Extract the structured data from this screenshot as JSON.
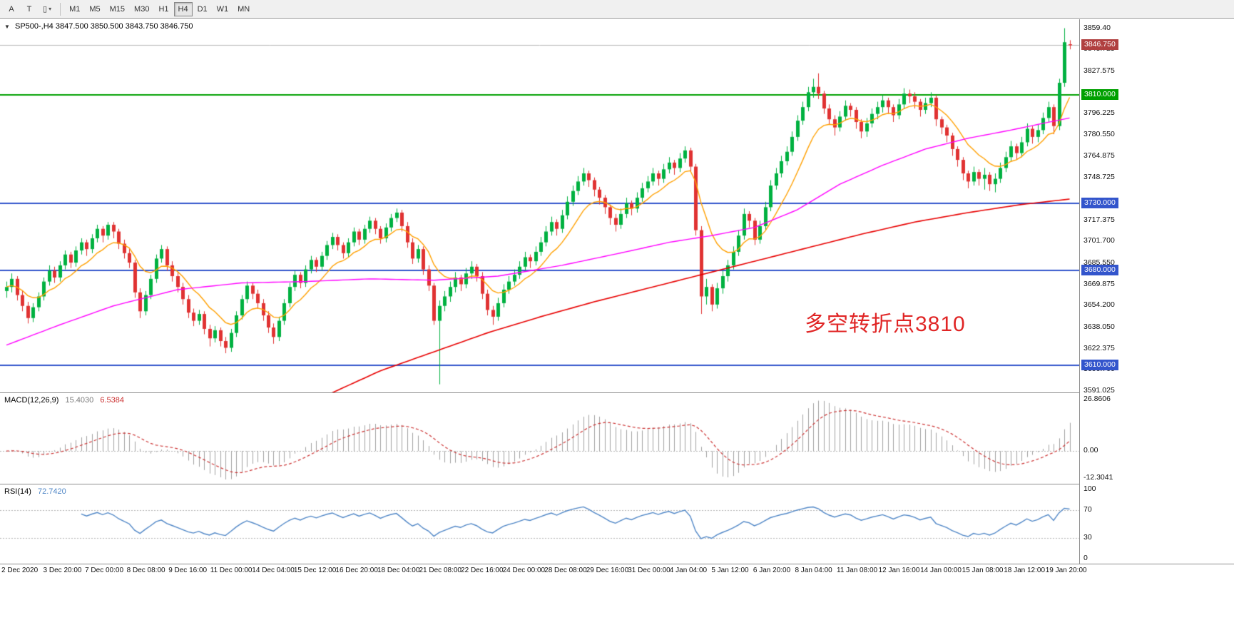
{
  "toolbar": {
    "left_buttons": [
      {
        "id": "symbols",
        "glyph": "A"
      },
      {
        "id": "text-tool",
        "glyph": "T"
      },
      {
        "id": "chart-type",
        "glyph": "▯",
        "caret": "▾"
      }
    ],
    "timeframes": [
      {
        "label": "M1",
        "active": false
      },
      {
        "label": "M5",
        "active": false
      },
      {
        "label": "M15",
        "active": false
      },
      {
        "label": "M30",
        "active": false
      },
      {
        "label": "H1",
        "active": false
      },
      {
        "label": "H4",
        "active": true
      },
      {
        "label": "D1",
        "active": false
      },
      {
        "label": "W1",
        "active": false
      },
      {
        "label": "MN",
        "active": false
      }
    ]
  },
  "chart": {
    "collapse_glyph": "▼",
    "title": "SP500-,H4  3847.500 3850.500 3843.750 3846.750",
    "annotation": {
      "text": "多空转折点3810",
      "color": "#e02525"
    },
    "current_price": {
      "label": "3846.750",
      "price": 3846.75,
      "box_color": "#b04040"
    },
    "hlines": [
      {
        "price": 3810,
        "label": "3810.000",
        "color": "#00a000"
      },
      {
        "price": 3730,
        "label": "3730.000",
        "color": "#3355cc"
      },
      {
        "price": 3680,
        "label": "3680.000",
        "color": "#3355cc"
      },
      {
        "price": 3610,
        "label": "3610.000",
        "color": "#3355cc"
      }
    ],
    "price_axis": {
      "min": 3590,
      "max": 3866,
      "grid_labels": [
        "3859.40",
        "3843.725",
        "3827.575",
        "3796.225",
        "3780.550",
        "3764.875",
        "3748.725",
        "3717.375",
        "3701.700",
        "3685.550",
        "3669.875",
        "3654.200",
        "3638.050",
        "3622.375",
        "3606.700",
        "3591.025"
      ]
    },
    "colors": {
      "up": "#00b140",
      "down": "#e03232",
      "ma_fast": "#ffa000",
      "ma_mid": "#ff00ff",
      "ma_slow": "#e80000",
      "bid_line": "#b8b8b8"
    }
  },
  "macd": {
    "label": "MACD(12,26,9)",
    "value1": "15.4030",
    "value2": "6.5384",
    "params": {
      "fast": 12,
      "slow": 26,
      "signal": 9
    },
    "axis": {
      "max": "26.8606",
      "zero": "0.00",
      "min": "-12.3041"
    },
    "colors": {
      "histogram": "#a0a0a0",
      "signal": "#cc3333",
      "zero_line": "#b4b4b4"
    }
  },
  "rsi": {
    "label": "RSI(14)",
    "value": "72.7420",
    "period": 14,
    "levels": [
      100,
      70,
      30,
      0
    ],
    "dotted_levels": [
      70,
      30
    ],
    "color": "#4f86c6"
  },
  "chart_data": {
    "type": "candlestick",
    "symbol": "SP500-",
    "timeframe": "H4",
    "ma_fast_period": 10,
    "ma_mid_anchors": [
      [
        0,
        3625
      ],
      [
        10,
        3640
      ],
      [
        20,
        3654
      ],
      [
        32,
        3666
      ],
      [
        44,
        3671
      ],
      [
        56,
        3672
      ],
      [
        68,
        3674
      ],
      [
        80,
        3673
      ],
      [
        92,
        3676
      ],
      [
        104,
        3684
      ],
      [
        116,
        3694
      ],
      [
        124,
        3701
      ],
      [
        132,
        3706
      ],
      [
        140,
        3712
      ],
      [
        148,
        3725
      ],
      [
        156,
        3744
      ],
      [
        164,
        3758
      ],
      [
        172,
        3770
      ],
      [
        180,
        3778
      ],
      [
        188,
        3784
      ],
      [
        194,
        3789
      ],
      [
        199,
        3793
      ]
    ],
    "ma_slow_anchors": [
      [
        50,
        3566
      ],
      [
        60,
        3588
      ],
      [
        70,
        3606
      ],
      [
        80,
        3620
      ],
      [
        90,
        3634
      ],
      [
        100,
        3646
      ],
      [
        110,
        3657
      ],
      [
        120,
        3667
      ],
      [
        130,
        3677
      ],
      [
        140,
        3687
      ],
      [
        150,
        3697
      ],
      [
        160,
        3707
      ],
      [
        170,
        3716
      ],
      [
        180,
        3723
      ],
      [
        190,
        3729
      ],
      [
        199,
        3733
      ]
    ],
    "x_labels": [
      "2 Dec 2020",
      "3 Dec 20:00",
      "7 Dec 00:00",
      "8 Dec 08:00",
      "9 Dec 16:00",
      "11 Dec 00:00",
      "14 Dec 04:00",
      "15 Dec 12:00",
      "16 Dec 20:00",
      "18 Dec 04:00",
      "21 Dec 08:00",
      "22 Dec 16:00",
      "24 Dec 00:00",
      "28 Dec 08:00",
      "29 Dec 16:00",
      "31 Dec 00:00",
      "4 Jan 04:00",
      "5 Jan 12:00",
      "6 Jan 20:00",
      "8 Jan 04:00",
      "11 Jan 08:00",
      "12 Jan 16:00",
      "14 Jan 00:00",
      "15 Jan 08:00",
      "18 Jan 12:00",
      "19 Jan 20:00"
    ],
    "ohlc": [
      [
        3665,
        3672,
        3660,
        3668
      ],
      [
        3668,
        3678,
        3664,
        3674
      ],
      [
        3674,
        3676,
        3658,
        3662
      ],
      [
        3662,
        3665,
        3650,
        3654
      ],
      [
        3654,
        3657,
        3641,
        3645
      ],
      [
        3645,
        3656,
        3642,
        3653
      ],
      [
        3653,
        3664,
        3650,
        3661
      ],
      [
        3661,
        3675,
        3658,
        3672
      ],
      [
        3672,
        3684,
        3669,
        3680
      ],
      [
        3680,
        3683,
        3671,
        3675
      ],
      [
        3675,
        3687,
        3672,
        3684
      ],
      [
        3684,
        3695,
        3681,
        3692
      ],
      [
        3692,
        3694,
        3682,
        3686
      ],
      [
        3686,
        3698,
        3683,
        3695
      ],
      [
        3695,
        3704,
        3692,
        3701
      ],
      [
        3701,
        3703,
        3691,
        3696
      ],
      [
        3696,
        3707,
        3693,
        3704
      ],
      [
        3704,
        3714,
        3701,
        3711
      ],
      [
        3711,
        3713,
        3701,
        3706
      ],
      [
        3706,
        3716,
        3703,
        3714
      ],
      [
        3714,
        3716,
        3704,
        3709
      ],
      [
        3709,
        3711,
        3696,
        3700
      ],
      [
        3700,
        3703,
        3689,
        3693
      ],
      [
        3693,
        3696,
        3682,
        3686
      ],
      [
        3686,
        3688,
        3660,
        3664
      ],
      [
        3664,
        3667,
        3645,
        3650
      ],
      [
        3650,
        3665,
        3647,
        3662
      ],
      [
        3662,
        3677,
        3659,
        3674
      ],
      [
        3674,
        3692,
        3671,
        3689
      ],
      [
        3689,
        3699,
        3686,
        3696
      ],
      [
        3696,
        3698,
        3680,
        3684
      ],
      [
        3684,
        3687,
        3672,
        3676
      ],
      [
        3676,
        3679,
        3664,
        3668
      ],
      [
        3668,
        3671,
        3655,
        3659
      ],
      [
        3659,
        3662,
        3645,
        3649
      ],
      [
        3649,
        3652,
        3639,
        3643
      ],
      [
        3643,
        3651,
        3640,
        3648
      ],
      [
        3648,
        3650,
        3633,
        3637
      ],
      [
        3637,
        3640,
        3624,
        3630
      ],
      [
        3630,
        3639,
        3627,
        3636
      ],
      [
        3636,
        3638,
        3624,
        3628
      ],
      [
        3628,
        3631,
        3619,
        3623
      ],
      [
        3623,
        3637,
        3620,
        3634
      ],
      [
        3634,
        3650,
        3631,
        3647
      ],
      [
        3647,
        3662,
        3644,
        3659
      ],
      [
        3659,
        3672,
        3656,
        3669
      ],
      [
        3669,
        3671,
        3659,
        3663
      ],
      [
        3663,
        3666,
        3652,
        3656
      ],
      [
        3656,
        3659,
        3643,
        3647
      ],
      [
        3647,
        3650,
        3634,
        3638
      ],
      [
        3638,
        3641,
        3626,
        3631
      ],
      [
        3631,
        3646,
        3628,
        3643
      ],
      [
        3643,
        3659,
        3640,
        3656
      ],
      [
        3656,
        3671,
        3653,
        3668
      ],
      [
        3668,
        3680,
        3665,
        3677
      ],
      [
        3677,
        3679,
        3667,
        3671
      ],
      [
        3671,
        3684,
        3668,
        3681
      ],
      [
        3681,
        3691,
        3678,
        3688
      ],
      [
        3688,
        3690,
        3679,
        3683
      ],
      [
        3683,
        3694,
        3680,
        3691
      ],
      [
        3691,
        3702,
        3688,
        3699
      ],
      [
        3699,
        3708,
        3696,
        3705
      ],
      [
        3705,
        3707,
        3695,
        3699
      ],
      [
        3699,
        3701,
        3689,
        3693
      ],
      [
        3693,
        3704,
        3690,
        3701
      ],
      [
        3701,
        3712,
        3698,
        3709
      ],
      [
        3709,
        3711,
        3699,
        3703
      ],
      [
        3703,
        3714,
        3700,
        3711
      ],
      [
        3711,
        3720,
        3708,
        3717
      ],
      [
        3717,
        3719,
        3707,
        3711
      ],
      [
        3711,
        3713,
        3700,
        3704
      ],
      [
        3704,
        3715,
        3701,
        3712
      ],
      [
        3712,
        3722,
        3709,
        3719
      ],
      [
        3719,
        3726,
        3716,
        3723
      ],
      [
        3723,
        3725,
        3709,
        3713
      ],
      [
        3713,
        3716,
        3697,
        3701
      ],
      [
        3701,
        3704,
        3685,
        3689
      ],
      [
        3689,
        3699,
        3686,
        3696
      ],
      [
        3696,
        3698,
        3677,
        3681
      ],
      [
        3681,
        3684,
        3665,
        3669
      ],
      [
        3669,
        3671,
        3640,
        3643
      ],
      [
        3643,
        3658,
        3596,
        3654
      ],
      [
        3654,
        3665,
        3650,
        3661
      ],
      [
        3661,
        3672,
        3657,
        3668
      ],
      [
        3668,
        3679,
        3664,
        3675
      ],
      [
        3675,
        3677,
        3665,
        3670
      ],
      [
        3670,
        3682,
        3667,
        3678
      ],
      [
        3678,
        3687,
        3674,
        3683
      ],
      [
        3683,
        3685,
        3672,
        3676
      ],
      [
        3676,
        3679,
        3659,
        3663
      ],
      [
        3663,
        3666,
        3647,
        3651
      ],
      [
        3651,
        3654,
        3640,
        3646
      ],
      [
        3646,
        3660,
        3643,
        3656
      ],
      [
        3656,
        3670,
        3653,
        3666
      ],
      [
        3666,
        3676,
        3663,
        3672
      ],
      [
        3672,
        3681,
        3669,
        3677
      ],
      [
        3677,
        3687,
        3674,
        3683
      ],
      [
        3683,
        3694,
        3680,
        3690
      ],
      [
        3690,
        3692,
        3682,
        3687
      ],
      [
        3687,
        3698,
        3684,
        3694
      ],
      [
        3694,
        3705,
        3691,
        3701
      ],
      [
        3701,
        3713,
        3698,
        3709
      ],
      [
        3709,
        3720,
        3706,
        3716
      ],
      [
        3716,
        3718,
        3706,
        3711
      ],
      [
        3711,
        3725,
        3708,
        3721
      ],
      [
        3721,
        3735,
        3718,
        3731
      ],
      [
        3731,
        3743,
        3728,
        3739
      ],
      [
        3739,
        3750,
        3736,
        3746
      ],
      [
        3746,
        3756,
        3743,
        3752
      ],
      [
        3752,
        3754,
        3742,
        3747
      ],
      [
        3747,
        3749,
        3735,
        3740
      ],
      [
        3740,
        3742,
        3729,
        3734
      ],
      [
        3734,
        3736,
        3722,
        3727
      ],
      [
        3727,
        3729,
        3714,
        3719
      ],
      [
        3719,
        3722,
        3709,
        3714
      ],
      [
        3714,
        3726,
        3711,
        3722
      ],
      [
        3722,
        3734,
        3719,
        3730
      ],
      [
        3730,
        3732,
        3721,
        3726
      ],
      [
        3726,
        3738,
        3723,
        3734
      ],
      [
        3734,
        3745,
        3731,
        3741
      ],
      [
        3741,
        3750,
        3738,
        3746
      ],
      [
        3746,
        3756,
        3743,
        3752
      ],
      [
        3752,
        3754,
        3743,
        3748
      ],
      [
        3748,
        3759,
        3745,
        3755
      ],
      [
        3755,
        3764,
        3752,
        3760
      ],
      [
        3760,
        3762,
        3751,
        3756
      ],
      [
        3756,
        3767,
        3753,
        3763
      ],
      [
        3763,
        3772,
        3760,
        3769
      ],
      [
        3769,
        3771,
        3753,
        3757
      ],
      [
        3757,
        3759,
        3706,
        3710
      ],
      [
        3710,
        3713,
        3648,
        3661
      ],
      [
        3661,
        3674,
        3655,
        3668
      ],
      [
        3668,
        3670,
        3650,
        3655
      ],
      [
        3655,
        3671,
        3652,
        3667
      ],
      [
        3667,
        3680,
        3663,
        3676
      ],
      [
        3676,
        3688,
        3672,
        3684
      ],
      [
        3684,
        3698,
        3681,
        3694
      ],
      [
        3694,
        3710,
        3691,
        3706
      ],
      [
        3706,
        3726,
        3703,
        3722
      ],
      [
        3722,
        3724,
        3712,
        3717
      ],
      [
        3717,
        3719,
        3699,
        3703
      ],
      [
        3703,
        3717,
        3700,
        3713
      ],
      [
        3713,
        3731,
        3710,
        3727
      ],
      [
        3727,
        3747,
        3724,
        3743
      ],
      [
        3743,
        3756,
        3740,
        3752
      ],
      [
        3752,
        3765,
        3749,
        3761
      ],
      [
        3761,
        3772,
        3758,
        3768
      ],
      [
        3768,
        3783,
        3765,
        3779
      ],
      [
        3779,
        3795,
        3776,
        3791
      ],
      [
        3791,
        3805,
        3788,
        3801
      ],
      [
        3801,
        3816,
        3798,
        3812
      ],
      [
        3812,
        3822,
        3808,
        3816
      ],
      [
        3816,
        3826,
        3807,
        3811
      ],
      [
        3811,
        3813,
        3796,
        3800
      ],
      [
        3800,
        3803,
        3788,
        3792
      ],
      [
        3792,
        3795,
        3780,
        3786
      ],
      [
        3786,
        3798,
        3783,
        3794
      ],
      [
        3794,
        3806,
        3791,
        3802
      ],
      [
        3802,
        3804,
        3794,
        3799
      ],
      [
        3799,
        3801,
        3785,
        3790
      ],
      [
        3790,
        3792,
        3778,
        3783
      ],
      [
        3783,
        3793,
        3779,
        3789
      ],
      [
        3789,
        3800,
        3786,
        3796
      ],
      [
        3796,
        3805,
        3792,
        3801
      ],
      [
        3801,
        3810,
        3797,
        3806
      ],
      [
        3806,
        3808,
        3796,
        3801
      ],
      [
        3801,
        3803,
        3790,
        3795
      ],
      [
        3795,
        3807,
        3792,
        3803
      ],
      [
        3803,
        3815,
        3800,
        3811
      ],
      [
        3811,
        3814,
        3804,
        3809
      ],
      [
        3809,
        3812,
        3800,
        3805
      ],
      [
        3805,
        3807,
        3794,
        3799
      ],
      [
        3799,
        3808,
        3796,
        3804
      ],
      [
        3804,
        3812,
        3801,
        3808
      ],
      [
        3808,
        3810,
        3787,
        3792
      ],
      [
        3792,
        3794,
        3781,
        3786
      ],
      [
        3786,
        3788,
        3775,
        3780
      ],
      [
        3780,
        3782,
        3765,
        3770
      ],
      [
        3770,
        3772,
        3757,
        3762
      ],
      [
        3762,
        3764,
        3747,
        3752
      ],
      [
        3752,
        3754,
        3741,
        3746
      ],
      [
        3746,
        3757,
        3743,
        3753
      ],
      [
        3753,
        3755,
        3743,
        3748
      ],
      [
        3748,
        3756,
        3740,
        3751
      ],
      [
        3751,
        3753,
        3739,
        3744
      ],
      [
        3744,
        3752,
        3738,
        3748
      ],
      [
        3748,
        3760,
        3745,
        3756
      ],
      [
        3756,
        3768,
        3753,
        3764
      ],
      [
        3764,
        3776,
        3761,
        3772
      ],
      [
        3772,
        3774,
        3762,
        3767
      ],
      [
        3767,
        3779,
        3764,
        3775
      ],
      [
        3775,
        3789,
        3772,
        3785
      ],
      [
        3785,
        3787,
        3774,
        3779
      ],
      [
        3779,
        3788,
        3775,
        3784
      ],
      [
        3784,
        3797,
        3781,
        3793
      ],
      [
        3793,
        3805,
        3790,
        3801
      ],
      [
        3801,
        3803,
        3781,
        3787
      ],
      [
        3787,
        3822,
        3784,
        3819
      ],
      [
        3819,
        3859.4,
        3816,
        3849
      ],
      [
        3847.5,
        3850.5,
        3843.75,
        3846.75
      ]
    ]
  }
}
